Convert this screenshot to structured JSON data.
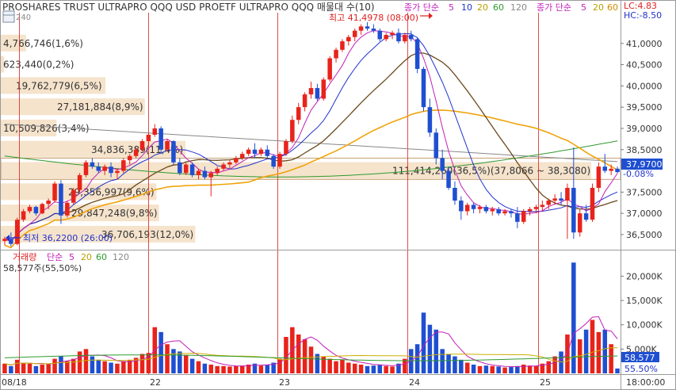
{
  "header": {
    "title": "PROSHARES TRUST ULTRAPRO QQQ USD  PROETF ULTRAPRO QQQ 매물대 수(10)",
    "sub": "240",
    "ma_label": "종가 단순",
    "ma_periods": [
      "5",
      "10",
      "20",
      "60",
      "120"
    ],
    "ma_label2": "종가 단순",
    "ma_periods2": [
      "5",
      "20",
      "60"
    ],
    "lc": "LC:4.83",
    "hc": "HC:-8.50"
  },
  "price_axis": {
    "ticks": [
      "41,0000",
      "40,5000",
      "40,0000",
      "39,5000",
      "39,0000",
      "38,5000",
      "37,5000",
      "37,0000",
      "36,5000"
    ],
    "current": "37,9700",
    "change": "-0.08%"
  },
  "volume_axis": {
    "ticks": [
      "20,000K",
      "15,000K",
      "10,000K",
      "5,000K"
    ],
    "current": "58,577",
    "pct": "55.50%"
  },
  "x_axis": {
    "dates": [
      "08/18",
      "22",
      "23",
      "24",
      "25"
    ],
    "time": "18:00:00"
  },
  "annotations": {
    "high": "최고 41,4978 (08:00)",
    "low": "최저 36,2200 (26:00)"
  },
  "volume_header": {
    "label": "거래량",
    "ma_label": "단순",
    "periods": [
      "5",
      "20",
      "60",
      "120"
    ],
    "info": "58,577주(55,50%)"
  },
  "volume_profile": [
    {
      "label": "4,766,746(1,6%)",
      "price": 41.0,
      "value": 4766746
    },
    {
      "label": "623,440(0,2%)",
      "price": 40.5,
      "value": 623440
    },
    {
      "label": "19,762,779(6,5%)",
      "price": 40.0,
      "value": 19762779
    },
    {
      "label": "27,181,884(8,9%)",
      "price": 39.5,
      "value": 27181884
    },
    {
      "label": "10,509,826(3,4%)",
      "price": 39.0,
      "value": 10509826
    },
    {
      "label": "34,836,389(11,4%)",
      "price": 38.5,
      "value": 34836389
    },
    {
      "label": "111,414,260(36,5%)(37,8066 ~ 38,3080)",
      "price": 38.0,
      "value": 111414260
    },
    {
      "label": "29,356,997(9,6%)",
      "price": 37.5,
      "value": 29356997
    },
    {
      "label": "29,847,248(9,8%)",
      "price": 37.0,
      "value": 29847248
    },
    {
      "label": "36,706,193(12,0%)",
      "price": 36.5,
      "value": 36706193
    }
  ],
  "colors": {
    "up": "#e8231b",
    "down": "#1f4fd1",
    "ma5": "#c21fb8",
    "ma10": "#2233cc",
    "ma20": "#6b4a1a",
    "ma60": "#f0a30a",
    "ma120": "#888888",
    "green": "#2e9a2e",
    "profile": "#f5e3cc",
    "day_line": "#d92020"
  },
  "chart_data": {
    "type": "candlestick",
    "price_range": [
      36.2,
      41.5
    ],
    "volume_range": [
      0,
      23000000
    ],
    "candles": [
      [
        36.35,
        36.45,
        36.25,
        36.4,
        2.0
      ],
      [
        36.4,
        36.55,
        36.22,
        36.28,
        1.5
      ],
      [
        36.28,
        36.9,
        36.25,
        36.85,
        2.8
      ],
      [
        36.85,
        37.1,
        36.8,
        37.05,
        2.2
      ],
      [
        37.05,
        37.2,
        37.0,
        37.15,
        2.0
      ],
      [
        37.15,
        37.18,
        36.95,
        37.0,
        1.5
      ],
      [
        37.0,
        37.25,
        36.98,
        37.22,
        1.8
      ],
      [
        37.22,
        37.35,
        37.1,
        37.3,
        2.0
      ],
      [
        37.3,
        37.75,
        37.25,
        37.7,
        3.0
      ],
      [
        37.7,
        37.78,
        36.75,
        36.95,
        3.5
      ],
      [
        36.95,
        37.3,
        36.9,
        37.25,
        2.5
      ],
      [
        37.25,
        37.6,
        37.2,
        37.55,
        3.0
      ],
      [
        37.55,
        37.95,
        37.5,
        37.9,
        4.5
      ],
      [
        37.9,
        38.25,
        37.85,
        38.2,
        5.0
      ],
      [
        38.2,
        38.3,
        38.05,
        38.1,
        3.5
      ],
      [
        38.1,
        38.2,
        37.95,
        38.0,
        2.8
      ],
      [
        38.0,
        38.15,
        37.9,
        38.1,
        2.5
      ],
      [
        38.1,
        38.2,
        37.85,
        37.95,
        2.2
      ],
      [
        37.95,
        38.05,
        37.8,
        38.0,
        2.0
      ],
      [
        38.0,
        38.3,
        37.95,
        38.25,
        2.5
      ],
      [
        38.25,
        38.4,
        38.15,
        38.35,
        2.8
      ],
      [
        38.35,
        38.55,
        38.3,
        38.5,
        3.2
      ],
      [
        38.5,
        38.75,
        38.45,
        38.7,
        4.0
      ],
      [
        38.7,
        38.9,
        38.6,
        38.85,
        4.2
      ],
      [
        38.85,
        39.1,
        38.8,
        39.0,
        9.5
      ],
      [
        39.0,
        39.05,
        38.4,
        38.5,
        8.5
      ],
      [
        38.5,
        38.75,
        38.45,
        38.7,
        6.0
      ],
      [
        38.7,
        38.72,
        38.15,
        38.2,
        5.0
      ],
      [
        38.2,
        38.3,
        37.9,
        37.95,
        4.5
      ],
      [
        37.95,
        38.2,
        37.9,
        38.15,
        3.8
      ],
      [
        38.15,
        38.2,
        37.85,
        37.9,
        3.0
      ],
      [
        37.9,
        38.05,
        37.8,
        38.0,
        2.5
      ],
      [
        38.0,
        38.1,
        37.8,
        37.85,
        2.0
      ],
      [
        37.85,
        38.0,
        37.4,
        37.95,
        1.8
      ],
      [
        37.95,
        38.1,
        37.9,
        38.05,
        1.5
      ],
      [
        38.05,
        38.2,
        38.0,
        38.15,
        1.5
      ],
      [
        38.15,
        38.25,
        38.05,
        38.2,
        1.4
      ],
      [
        38.2,
        38.35,
        38.15,
        38.3,
        1.5
      ],
      [
        38.3,
        38.45,
        38.25,
        38.4,
        1.6
      ],
      [
        38.4,
        38.55,
        38.35,
        38.5,
        1.8
      ],
      [
        38.5,
        38.65,
        38.3,
        38.4,
        2.0
      ],
      [
        38.4,
        38.55,
        38.35,
        38.5,
        1.6
      ],
      [
        38.5,
        38.6,
        38.3,
        38.35,
        1.8
      ],
      [
        38.35,
        38.4,
        38.05,
        38.1,
        2.2
      ],
      [
        38.1,
        38.45,
        38.05,
        38.4,
        3.0
      ],
      [
        38.4,
        38.75,
        38.35,
        38.7,
        7.5
      ],
      [
        38.7,
        39.3,
        38.65,
        39.2,
        9.5
      ],
      [
        39.2,
        39.6,
        39.1,
        39.5,
        8.0
      ],
      [
        39.5,
        39.85,
        39.4,
        39.8,
        7.0
      ],
      [
        39.8,
        40.1,
        39.7,
        39.95,
        5.5
      ],
      [
        39.95,
        40.05,
        39.65,
        39.7,
        4.0
      ],
      [
        39.7,
        40.2,
        39.65,
        40.15,
        3.5
      ],
      [
        40.15,
        40.7,
        40.1,
        40.65,
        3.0
      ],
      [
        40.65,
        40.9,
        40.55,
        40.85,
        2.5
      ],
      [
        40.85,
        41.1,
        40.8,
        41.05,
        2.8
      ],
      [
        41.05,
        41.2,
        40.95,
        41.15,
        2.2
      ],
      [
        41.15,
        41.35,
        41.05,
        41.3,
        2.0
      ],
      [
        41.3,
        41.45,
        41.2,
        41.4,
        1.8
      ],
      [
        41.4,
        41.5,
        41.3,
        41.35,
        1.5
      ],
      [
        41.35,
        41.45,
        41.25,
        41.3,
        1.6
      ],
      [
        41.3,
        41.35,
        41.05,
        41.1,
        1.8
      ],
      [
        41.1,
        41.25,
        41.05,
        41.2,
        1.5
      ],
      [
        41.2,
        41.3,
        41.1,
        41.25,
        1.4
      ],
      [
        41.25,
        41.35,
        41.0,
        41.05,
        2.0
      ],
      [
        41.05,
        41.25,
        41.0,
        41.2,
        3.0
      ],
      [
        41.2,
        41.3,
        41.05,
        41.1,
        5.0
      ],
      [
        41.1,
        41.15,
        40.3,
        40.4,
        6.0
      ],
      [
        40.4,
        40.45,
        39.4,
        39.5,
        12.5
      ],
      [
        39.5,
        39.7,
        38.8,
        38.9,
        10.0
      ],
      [
        38.9,
        39.0,
        38.15,
        38.3,
        9.0
      ],
      [
        38.3,
        38.5,
        37.8,
        38.0,
        5.0
      ],
      [
        38.0,
        38.1,
        37.55,
        37.6,
        4.0
      ],
      [
        37.6,
        37.75,
        37.2,
        37.3,
        3.5
      ],
      [
        37.3,
        37.4,
        36.85,
        37.05,
        2.8
      ],
      [
        37.05,
        37.25,
        36.95,
        37.2,
        2.2
      ],
      [
        37.2,
        37.25,
        37.0,
        37.1,
        1.8
      ],
      [
        37.1,
        37.2,
        37.0,
        37.15,
        1.5
      ],
      [
        37.15,
        37.2,
        37.0,
        37.05,
        1.6
      ],
      [
        37.05,
        37.15,
        36.95,
        37.1,
        1.5
      ],
      [
        37.1,
        37.15,
        36.95,
        37.0,
        1.4
      ],
      [
        37.0,
        37.1,
        36.95,
        37.05,
        1.2
      ],
      [
        37.05,
        37.1,
        36.9,
        37.0,
        1.3
      ],
      [
        37.0,
        37.15,
        36.65,
        36.8,
        1.5
      ],
      [
        36.8,
        37.1,
        36.75,
        37.05,
        1.8
      ],
      [
        37.05,
        37.15,
        36.95,
        37.1,
        1.6
      ],
      [
        37.1,
        37.2,
        37.0,
        37.15,
        1.5
      ],
      [
        37.15,
        37.3,
        37.05,
        37.2,
        2.0
      ],
      [
        37.2,
        37.35,
        37.1,
        37.3,
        2.5
      ],
      [
        37.3,
        37.45,
        37.2,
        37.35,
        3.5
      ],
      [
        37.35,
        37.5,
        37.2,
        37.3,
        4.5
      ],
      [
        37.3,
        37.7,
        36.4,
        37.6,
        8.0
      ],
      [
        37.6,
        38.55,
        36.4,
        36.55,
        22.8
      ],
      [
        36.55,
        37.1,
        36.45,
        37.0,
        7.0
      ],
      [
        37.0,
        37.2,
        36.8,
        36.85,
        9.0
      ],
      [
        36.85,
        37.7,
        36.8,
        37.6,
        11.0
      ],
      [
        37.6,
        38.2,
        37.5,
        38.1,
        8.5
      ],
      [
        38.1,
        38.4,
        37.95,
        38.0,
        9.0
      ],
      [
        38.0,
        38.15,
        37.9,
        38.05,
        6.0
      ],
      [
        38.05,
        38.1,
        37.95,
        37.97,
        1.0
      ]
    ]
  }
}
